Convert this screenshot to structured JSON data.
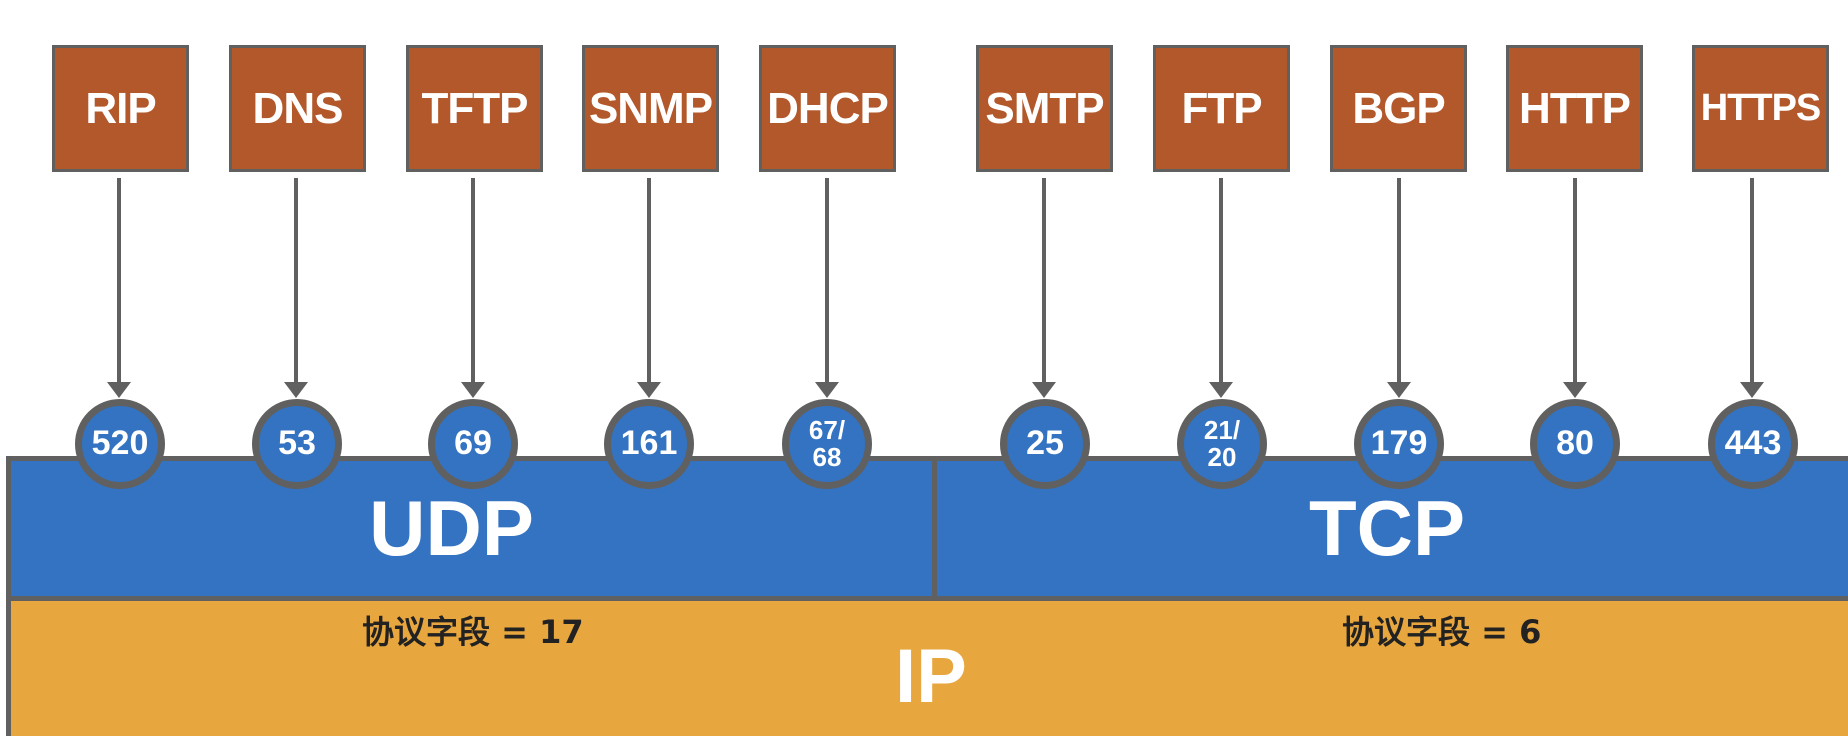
{
  "app_protocols": [
    {
      "name": "RIP",
      "port": "520"
    },
    {
      "name": "DNS",
      "port": "53"
    },
    {
      "name": "TFTP",
      "port": "69"
    },
    {
      "name": "SNMP",
      "port": "161"
    },
    {
      "name": "DHCP",
      "port_line1": "67/",
      "port_line2": "68"
    },
    {
      "name": "SMTP",
      "port": "25"
    },
    {
      "name": "FTP",
      "port_line1": "21/",
      "port_line2": "20"
    },
    {
      "name": "BGP",
      "port": "179"
    },
    {
      "name": "HTTP",
      "port": "80"
    },
    {
      "name": "HTTPS",
      "port": "443"
    }
  ],
  "transport": {
    "udp": {
      "label": "UDP",
      "protocol_field": "协议字段 = 17"
    },
    "tcp": {
      "label": "TCP",
      "protocol_field": "协议字段 = 6"
    }
  },
  "network": {
    "label": "IP"
  },
  "colors": {
    "app_box": "#b3582a",
    "transport": "#3373c1",
    "network": "#e8a73e",
    "outline": "#606060"
  }
}
